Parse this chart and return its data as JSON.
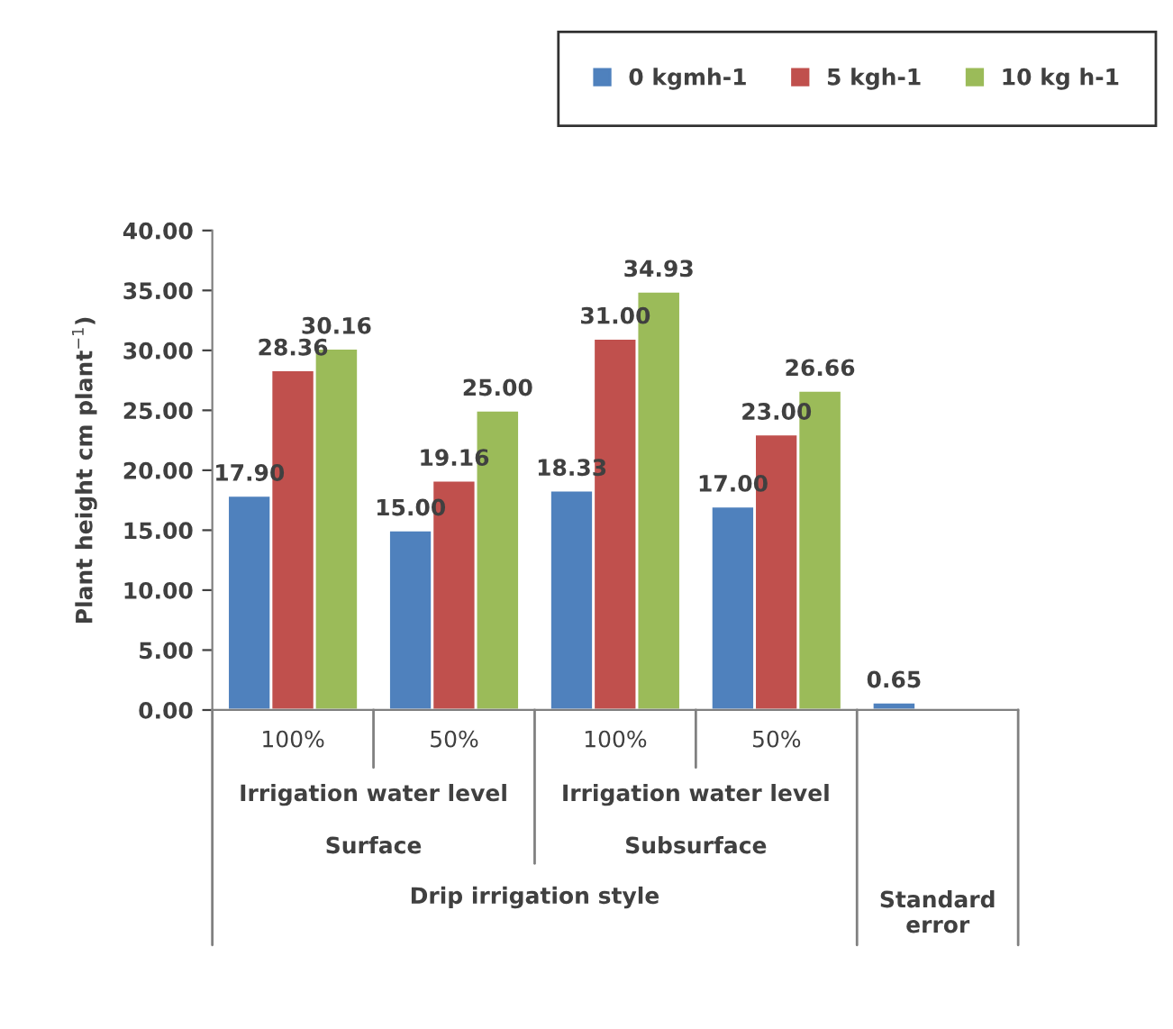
{
  "chart_data": {
    "type": "bar",
    "categories": [
      "100%",
      "50%",
      "100%",
      "50%",
      null
    ],
    "series": [
      {
        "name": "0 kgmh-1",
        "color": "#4f81bd",
        "values": [
          17.9,
          15.0,
          18.33,
          17.0,
          0.65
        ],
        "value_labels": [
          "17.90",
          "15.00",
          "18.33",
          "17.00",
          "0.65"
        ]
      },
      {
        "name": "5 kgh-1",
        "color": "#c0504d",
        "values": [
          28.36,
          19.16,
          31.0,
          23.0,
          null
        ],
        "value_labels": [
          "28.36",
          "19.16",
          "31.00",
          "23.00",
          null
        ]
      },
      {
        "name": "10 kg h-1",
        "color": "#9bbb59",
        "values": [
          30.16,
          25.0,
          34.93,
          26.66,
          null
        ],
        "value_labels": [
          "30.16",
          "25.00",
          "34.93",
          "26.66",
          null
        ]
      }
    ],
    "ylabel": "Plant height cm plant$^{−1}$)",
    "ylim": [
      0,
      40
    ],
    "yticks": [
      {
        "value": 0,
        "label": "0.00"
      },
      {
        "value": 5,
        "label": "5.00"
      },
      {
        "value": 10,
        "label": "10.00"
      },
      {
        "value": 15,
        "label": "15.00"
      },
      {
        "value": 20,
        "label": "20.00"
      },
      {
        "value": 25,
        "label": "25.00"
      },
      {
        "value": 30,
        "label": "30.00"
      },
      {
        "value": 35,
        "label": "35.00"
      },
      {
        "value": 40,
        "label": "40.00"
      }
    ],
    "annotations": [
      "Irrigation water level",
      "Irrigation water level",
      "Surface",
      "Subsurface",
      "Drip irrigation style",
      "Standard\nerror"
    ],
    "legend": "top right",
    "grid": false
  }
}
